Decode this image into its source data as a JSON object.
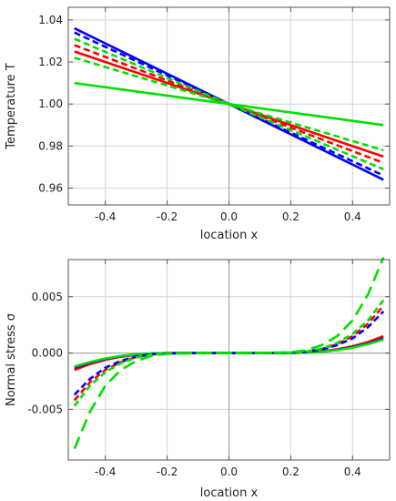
{
  "chart_data": [
    {
      "type": "line",
      "title": "",
      "xlabel": "location  x",
      "ylabel": "Temperature  T",
      "xlim": [
        -0.52,
        0.52
      ],
      "ylim": [
        0.952,
        1.046
      ],
      "xticks": [
        -0.4,
        -0.2,
        0.0,
        0.2,
        0.4
      ],
      "xtick_labels": [
        "-0.4",
        "-0.2",
        "0.0",
        "0.2",
        "0.4"
      ],
      "yticks": [
        0.96,
        0.98,
        1.0,
        1.02,
        1.04
      ],
      "ytick_labels": [
        "0.96",
        "0.98",
        "1.00",
        "1.02",
        "1.04"
      ],
      "grid": true,
      "legend": "none",
      "series": [
        {
          "color": "#0000ff",
          "style": "solid",
          "x": [
            -0.5,
            0.0,
            0.5
          ],
          "y": [
            1.036,
            1.0,
            0.964
          ]
        },
        {
          "color": "#0000ff",
          "style": "dashed",
          "x": [
            -0.5,
            0.0,
            0.5
          ],
          "y": [
            1.034,
            1.0,
            0.966
          ]
        },
        {
          "color": "#ff0000",
          "style": "solid",
          "x": [
            -0.5,
            0.0,
            0.5
          ],
          "y": [
            1.025,
            1.0,
            0.975
          ]
        },
        {
          "color": "#ff0000",
          "style": "dashed",
          "x": [
            -0.5,
            0.0,
            0.5
          ],
          "y": [
            1.028,
            1.0,
            0.972
          ]
        },
        {
          "color": "#00e000",
          "style": "solid",
          "x": [
            -0.5,
            0.0,
            0.5
          ],
          "y": [
            1.01,
            1.0,
            0.99
          ]
        },
        {
          "color": "#00e000",
          "style": "dashed",
          "x": [
            -0.5,
            0.0,
            0.5
          ],
          "y": [
            1.022,
            1.0,
            0.978
          ]
        },
        {
          "color": "#00e000",
          "style": "dashed",
          "x": [
            -0.5,
            0.0,
            0.5
          ],
          "y": [
            1.031,
            1.0,
            0.969
          ]
        }
      ]
    },
    {
      "type": "line",
      "title": "",
      "xlabel": "location  x",
      "ylabel": "Normal stress  σ",
      "xlim": [
        -0.52,
        0.52
      ],
      "ylim": [
        -0.0095,
        0.0083
      ],
      "xticks": [
        -0.4,
        -0.2,
        0.0,
        0.2,
        0.4
      ],
      "xtick_labels": [
        "-0.4",
        "-0.2",
        "0.0",
        "0.2",
        "0.4"
      ],
      "yticks": [
        -0.005,
        0.0,
        0.005
      ],
      "ytick_labels": [
        "-0.005",
        "0.000",
        "0.005"
      ],
      "grid": true,
      "legend": "none",
      "series": [
        {
          "color": "#ff0000",
          "style": "solid",
          "x": [
            -0.5,
            -0.45,
            -0.4,
            -0.35,
            -0.3,
            -0.25,
            -0.2,
            -0.1,
            0.0,
            0.1,
            0.2,
            0.25,
            0.3,
            0.35,
            0.4,
            0.45,
            0.5
          ],
          "y": [
            -0.0015,
            -0.00098,
            -0.0006,
            -0.00033,
            -0.00015,
            -5e-05,
            -1e-05,
            0.0,
            0.0,
            0.0,
            1e-05,
            5e-05,
            0.00015,
            0.00033,
            0.0006,
            0.00098,
            0.0015
          ]
        },
        {
          "color": "#0000ff",
          "style": "solid",
          "x": [
            -0.5,
            -0.45,
            -0.4,
            -0.35,
            -0.3,
            -0.25,
            -0.2,
            -0.1,
            0.0,
            0.1,
            0.2,
            0.25,
            0.3,
            0.35,
            0.4,
            0.45,
            0.5
          ],
          "y": [
            -0.0013,
            -0.00085,
            -0.00052,
            -0.00028,
            -0.00013,
            -4e-05,
            -1e-05,
            0.0,
            0.0,
            0.0,
            1e-05,
            4e-05,
            0.00013,
            0.00028,
            0.00052,
            0.00085,
            0.0013
          ]
        },
        {
          "color": "#00e000",
          "style": "solid",
          "x": [
            -0.5,
            -0.45,
            -0.4,
            -0.35,
            -0.3,
            -0.25,
            -0.2,
            -0.1,
            0.0,
            0.1,
            0.2,
            0.25,
            0.3,
            0.35,
            0.4,
            0.45,
            0.5
          ],
          "y": [
            -0.0012,
            -0.0008,
            -0.00048,
            -0.00026,
            -0.00012,
            -4e-05,
            -1e-05,
            0.0,
            0.0,
            0.0,
            1e-05,
            4e-05,
            0.00012,
            0.00026,
            0.00048,
            0.0008,
            0.0012
          ]
        },
        {
          "color": "#ff0000",
          "style": "dashed",
          "x": [
            -0.5,
            -0.45,
            -0.4,
            -0.35,
            -0.3,
            -0.25,
            -0.2,
            -0.1,
            0.0,
            0.1,
            0.2,
            0.25,
            0.3,
            0.35,
            0.4,
            0.45,
            0.5
          ],
          "y": [
            -0.0042,
            -0.0026,
            -0.0015,
            -0.0008,
            -0.00035,
            -0.00012,
            -3e-05,
            0.0,
            0.0,
            0.0,
            3e-05,
            0.00012,
            0.00035,
            0.0008,
            0.0015,
            0.0026,
            0.0042
          ]
        },
        {
          "color": "#0000ff",
          "style": "dashed",
          "x": [
            -0.5,
            -0.45,
            -0.4,
            -0.35,
            -0.3,
            -0.25,
            -0.2,
            -0.1,
            0.0,
            0.1,
            0.2,
            0.25,
            0.3,
            0.35,
            0.4,
            0.45,
            0.5
          ],
          "y": [
            -0.0037,
            -0.0023,
            -0.0013,
            -0.0007,
            -0.0003,
            -0.0001,
            -3e-05,
            0.0,
            0.0,
            0.0,
            3e-05,
            0.0001,
            0.0003,
            0.0007,
            0.0013,
            0.0023,
            0.0037
          ]
        },
        {
          "color": "#00e000",
          "style": "dashed",
          "x": [
            -0.5,
            -0.45,
            -0.4,
            -0.35,
            -0.3,
            -0.25,
            -0.2,
            -0.1,
            0.0,
            0.1,
            0.2,
            0.25,
            0.3,
            0.35,
            0.4,
            0.45,
            0.5
          ],
          "y": [
            -0.0047,
            -0.0029,
            -0.0017,
            -0.0009,
            -0.0004,
            -0.00014,
            -4e-05,
            0.0,
            0.0,
            0.0,
            4e-05,
            0.00014,
            0.0004,
            0.0009,
            0.0017,
            0.0029,
            0.0047
          ]
        },
        {
          "color": "#00e000",
          "style": "long-dashed",
          "x": [
            -0.5,
            -0.45,
            -0.4,
            -0.35,
            -0.3,
            -0.25,
            -0.2,
            -0.1,
            0.0,
            0.1,
            0.2,
            0.25,
            0.3,
            0.35,
            0.4,
            0.45,
            0.5
          ],
          "y": [
            -0.0085,
            -0.0052,
            -0.0029,
            -0.0015,
            -0.0007,
            -0.00025,
            -7e-05,
            0.0,
            0.0,
            0.0,
            7e-05,
            0.00025,
            0.0007,
            0.0015,
            0.0029,
            0.0052,
            0.0085
          ]
        }
      ]
    }
  ]
}
